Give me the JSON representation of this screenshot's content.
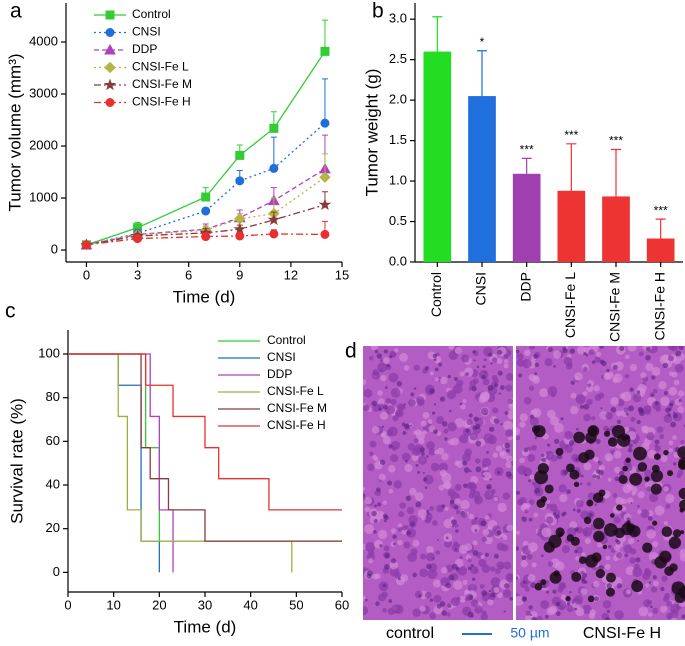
{
  "chart_data": [
    {
      "type": "line",
      "panel": "a",
      "x_label": "Time (d)",
      "y_label": "Tumor volume (mm³)",
      "x": [
        0,
        3,
        7,
        9,
        11,
        14
      ],
      "xlim": [
        -1.2,
        15
      ],
      "xticks": [
        0,
        3,
        6,
        9,
        12,
        15
      ],
      "ylim": [
        -230,
        4750
      ],
      "yticks": [
        0,
        1000,
        2000,
        3000,
        4000
      ],
      "series": [
        {
          "name": "Control",
          "color": "#33cc33",
          "line_style": "solid",
          "marker": "square",
          "values": [
            100,
            430,
            1020,
            1820,
            2340,
            3820
          ],
          "errors": [
            30,
            100,
            180,
            200,
            320,
            600
          ]
        },
        {
          "name": "CNSI",
          "color": "#1e6fd9",
          "line_style": "dotted",
          "marker": "circle",
          "values": [
            100,
            320,
            750,
            1330,
            1570,
            2440
          ],
          "errors": [
            30,
            80,
            60,
            200,
            600,
            850
          ]
        },
        {
          "name": "DDP",
          "color": "#b040c0",
          "line_style": "dashed",
          "marker": "triangle",
          "values": [
            100,
            300,
            400,
            620,
            950,
            1560
          ],
          "errors": [
            20,
            80,
            100,
            150,
            250,
            650
          ]
        },
        {
          "name": "CNSI-Fe L",
          "color": "#b5b545",
          "line_style": "dotted",
          "marker": "diamond",
          "values": [
            100,
            290,
            380,
            600,
            700,
            1400
          ],
          "errors": [
            20,
            60,
            80,
            100,
            300,
            450
          ]
        },
        {
          "name": "CNSI-Fe M",
          "color": "#8b3a3a",
          "line_style": "dashdot",
          "marker": "star",
          "values": [
            100,
            270,
            330,
            400,
            580,
            870
          ],
          "errors": [
            20,
            50,
            80,
            80,
            150,
            250
          ]
        },
        {
          "name": "CNSI-Fe H",
          "color": "#e83030",
          "line_style": "dashdot",
          "marker": "circle",
          "values": [
            100,
            220,
            260,
            270,
            310,
            300
          ],
          "errors": [
            20,
            40,
            60,
            60,
            80,
            250
          ]
        }
      ]
    },
    {
      "type": "bar",
      "panel": "b",
      "y_label": "Tumor weight (g)",
      "categories": [
        "Control",
        "CNSI",
        "DDP",
        "CNSI-Fe L",
        "CNSI-Fe M",
        "CNSI-Fe H"
      ],
      "values": [
        2.6,
        2.05,
        1.09,
        0.88,
        0.81,
        0.29
      ],
      "errors": [
        0.43,
        0.56,
        0.19,
        0.58,
        0.58,
        0.24
      ],
      "significance": [
        null,
        "*",
        "***",
        "***",
        "***",
        "***"
      ],
      "colors": [
        "#22dd22",
        "#1f6fdd",
        "#a040b0",
        "#ee3333",
        "#ee3333",
        "#ee3333"
      ],
      "ylim": [
        0,
        3.2
      ],
      "yticks": [
        {
          "value": 0,
          "label": "0.0"
        },
        0.5,
        {
          "value": 1,
          "label": "1.0"
        },
        1.5,
        {
          "value": 2,
          "label": "2.0"
        },
        2.5,
        {
          "value": 3,
          "label": "3.0"
        }
      ]
    },
    {
      "type": "step",
      "panel": "c",
      "x_label": "Time (d)",
      "y_label": "Survival rate (%)",
      "xlim": [
        0,
        60
      ],
      "xticks": [
        0,
        10,
        20,
        30,
        40,
        50,
        60
      ],
      "ylim": [
        -9,
        111
      ],
      "yticks": [
        0,
        20,
        40,
        60,
        80,
        100
      ],
      "series": [
        {
          "name": "Control",
          "color": "#33cc33",
          "x": [
            0,
            17,
            20,
            60
          ],
          "values": [
            100,
            57.1,
            14.3,
            14.3
          ]
        },
        {
          "name": "CNSI",
          "color": "#1e6fb9",
          "x": [
            0,
            11,
            16,
            20
          ],
          "values": [
            100,
            85.7,
            14.3,
            0
          ]
        },
        {
          "name": "DDP",
          "color": "#b040c0",
          "x": [
            0,
            18,
            20,
            23
          ],
          "values": [
            100,
            71.4,
            28.6,
            0
          ]
        },
        {
          "name": "CNSI-Fe L",
          "color": "#a0b040",
          "x": [
            0,
            11,
            13,
            16,
            49
          ],
          "values": [
            100,
            71.4,
            28.6,
            14.3,
            0
          ]
        },
        {
          "name": "CNSI-Fe M",
          "color": "#8b3a3a",
          "x": [
            0,
            16,
            18,
            22,
            30,
            60
          ],
          "values": [
            100,
            57.1,
            42.9,
            28.6,
            14.3,
            14.3
          ]
        },
        {
          "name": "CNSI-Fe H",
          "color": "#e83030",
          "x": [
            0,
            17,
            23,
            30,
            33,
            44,
            60
          ],
          "values": [
            100,
            85.7,
            71.4,
            57.1,
            42.9,
            28.6,
            28.6
          ]
        }
      ]
    }
  ],
  "micrographs": {
    "panel": "d",
    "left_label": "control",
    "scale_bar": "50 µm",
    "right_label": "CNSI-Fe H"
  }
}
